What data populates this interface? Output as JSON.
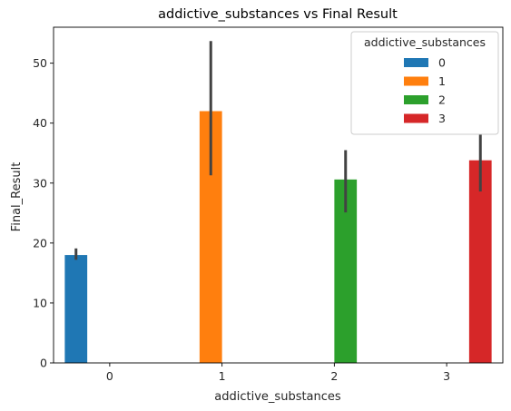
{
  "chart_data": {
    "type": "bar",
    "title": "addictive_substances vs Final Result",
    "xlabel": "addictive_substances",
    "ylabel": "Final_Result",
    "categories": [
      "0",
      "1",
      "2",
      "3"
    ],
    "ylim": [
      0,
      56
    ],
    "yticks": [
      0,
      10,
      20,
      30,
      40,
      50
    ],
    "grid": false,
    "legend": {
      "title": "addictive_substances",
      "position": "top-right"
    },
    "series": [
      {
        "name": "0",
        "color": "#1f77b4",
        "values": [
          18.0,
          null,
          null,
          null
        ],
        "ci": [
          [
            17.2,
            19.1
          ],
          null,
          null,
          null
        ]
      },
      {
        "name": "1",
        "color": "#ff7f0e",
        "values": [
          null,
          42.0,
          null,
          null
        ],
        "ci": [
          null,
          [
            31.3,
            53.7
          ],
          null,
          null
        ]
      },
      {
        "name": "2",
        "color": "#2ca02c",
        "values": [
          null,
          null,
          30.6,
          null
        ],
        "ci": [
          null,
          null,
          [
            25.1,
            35.5
          ],
          null
        ]
      },
      {
        "name": "3",
        "color": "#d62728",
        "values": [
          null,
          null,
          null,
          33.8
        ],
        "ci": [
          null,
          null,
          null,
          [
            28.6,
            38.2
          ]
        ]
      }
    ],
    "errorbar_color": "#424242"
  }
}
